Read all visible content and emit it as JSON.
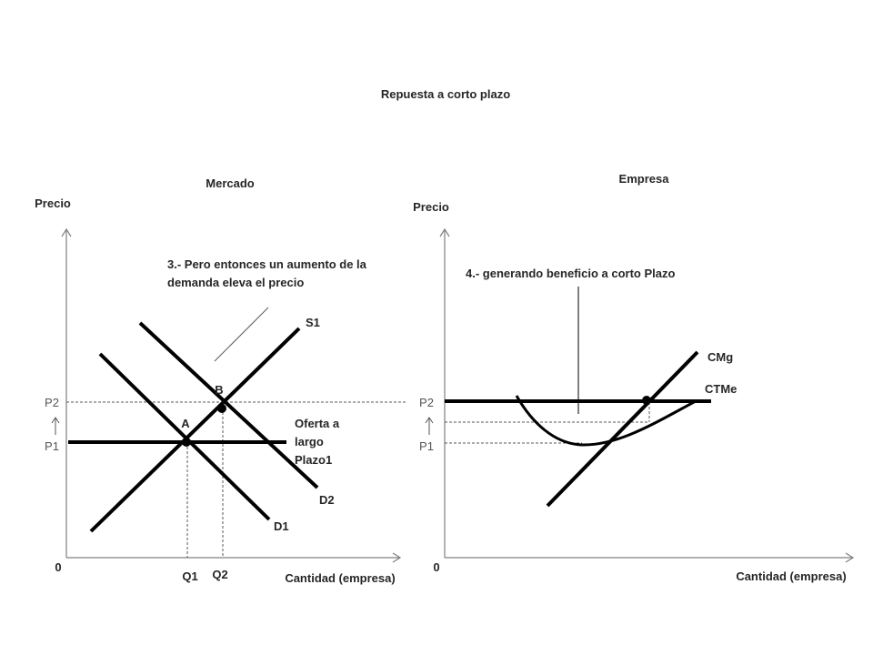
{
  "title": "Repuesta a corto plazo",
  "colors": {
    "line": "#000000",
    "text": "#262626",
    "guide": "#595959"
  },
  "left_panel": {
    "heading": "Mercado",
    "y_axis_label": "Precio",
    "x_axis_label": "Cantidad (empresa)",
    "origin_label": "0",
    "p2_label": "P2",
    "p1_label": "P1",
    "q1_label": "Q1",
    "q2_label": "Q2",
    "point_a_label": "A",
    "point_b_label": "B",
    "supply_label": "S1",
    "demand1_label": "D1",
    "demand2_label": "D2",
    "long_run_supply_line1": "Oferta a",
    "long_run_supply_line2": "largo",
    "long_run_supply_line3": "Plazo1",
    "note_line1": "3.- Pero entonces un aumento de la",
    "note_line2": "demanda eleva el precio"
  },
  "right_panel": {
    "heading": "Empresa",
    "y_axis_label": "Precio",
    "x_axis_label": "Cantidad (empresa)",
    "origin_label": "0",
    "p2_label": "P2",
    "p1_label": "P1",
    "cmg_label": "CMg",
    "ctme_label": "CTMe",
    "note": "4.- generando beneficio a corto Plazo"
  }
}
